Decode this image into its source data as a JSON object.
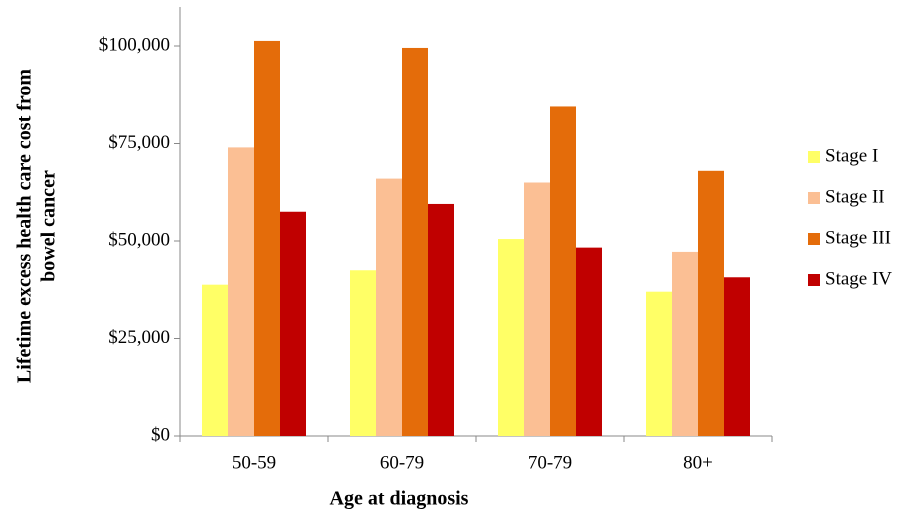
{
  "chart_data": {
    "type": "bar",
    "xlabel": "Age at diagnosis",
    "ylabel": [
      "Lifetime excess health care cost from",
      "bowel cancer"
    ],
    "categories": [
      "50-59",
      "60-79",
      "70-79",
      "80+"
    ],
    "series": [
      {
        "name": "Stage I",
        "color": "#ffff66",
        "values": [
          38800,
          42500,
          50500,
          37000
        ]
      },
      {
        "name": "Stage II",
        "color": "#fbbf94",
        "values": [
          74000,
          66000,
          65000,
          47200
        ]
      },
      {
        "name": "Stage III",
        "color": "#e46c0a",
        "values": [
          101300,
          99500,
          84500,
          68000
        ]
      },
      {
        "name": "Stage IV",
        "color": "#c00000",
        "values": [
          57500,
          59500,
          48300,
          40700
        ]
      }
    ],
    "ylim": [
      0,
      110000
    ],
    "yticks": [
      {
        "value": 0,
        "label": "$0"
      },
      {
        "value": 25000,
        "label": "$25,000"
      },
      {
        "value": 50000,
        "label": "$50,000"
      },
      {
        "value": 75000,
        "label": "$75,000"
      },
      {
        "value": 100000,
        "label": "$100,000"
      }
    ],
    "grid": false,
    "legend": "right"
  }
}
